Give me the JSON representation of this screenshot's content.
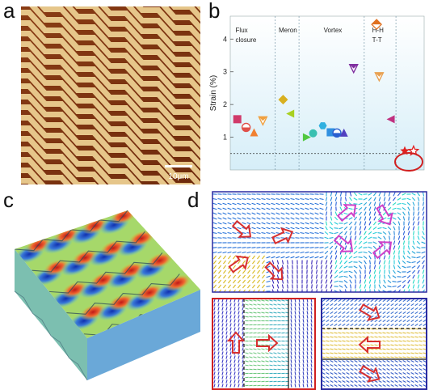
{
  "panels": {
    "a": {
      "letter": "a",
      "scalebar": "10μm"
    },
    "b": {
      "letter": "b",
      "chart_data": {
        "type": "scatter",
        "ylabel": "Strain (%)",
        "ylim": [
          0,
          4.7
        ],
        "yticks": [
          "1",
          "2",
          "3",
          "4"
        ],
        "threshold": 0.5,
        "regions": [
          "Flux\nclosure",
          "Meron",
          "Vortex",
          "H-H\nT-T"
        ],
        "points": [
          {
            "x": 0.4,
            "y": 1.55,
            "shape": "square",
            "color": "#d03a6a"
          },
          {
            "x": 0.9,
            "y": 1.3,
            "shape": "circle-half",
            "color": "#e0504a"
          },
          {
            "x": 1.35,
            "y": 1.15,
            "shape": "triangle",
            "color": "#f08030"
          },
          {
            "x": 1.85,
            "y": 1.5,
            "shape": "triangle-down",
            "color": "#f0a040"
          },
          {
            "x": 3.0,
            "y": 2.15,
            "shape": "diamond",
            "color": "#d8b020"
          },
          {
            "x": 3.4,
            "y": 1.72,
            "shape": "triangle-left",
            "color": "#a8d020"
          },
          {
            "x": 4.35,
            "y": 1.0,
            "shape": "triangle-right",
            "color": "#50c840"
          },
          {
            "x": 4.7,
            "y": 1.12,
            "shape": "circle",
            "color": "#38c0b0"
          },
          {
            "x": 5.25,
            "y": 1.35,
            "shape": "hexagon",
            "color": "#30b0e0"
          },
          {
            "x": 5.7,
            "y": 1.15,
            "shape": "square",
            "color": "#3090e0"
          },
          {
            "x": 6.05,
            "y": 1.13,
            "shape": "circle-half",
            "color": "#2a60d0"
          },
          {
            "x": 6.45,
            "y": 1.14,
            "shape": "triangle",
            "color": "#5040c0"
          },
          {
            "x": 7.0,
            "y": 3.1,
            "shape": "triangle-down",
            "color": "#8030a0"
          },
          {
            "x": 8.3,
            "y": 4.45,
            "shape": "diamond-half",
            "color": "#e07020"
          },
          {
            "x": 8.45,
            "y": 2.85,
            "shape": "triangle-down",
            "color": "#e8a050"
          },
          {
            "x": 9.1,
            "y": 1.55,
            "shape": "triangle-left",
            "color": "#c03080"
          },
          {
            "x": 9.9,
            "y": 0.58,
            "shape": "star",
            "color": "#e02020"
          },
          {
            "x": 10.4,
            "y": 0.58,
            "shape": "star-open",
            "color": "#e02020"
          }
        ]
      }
    },
    "c": {
      "letter": "c"
    },
    "d": {
      "letter": "d"
    }
  }
}
